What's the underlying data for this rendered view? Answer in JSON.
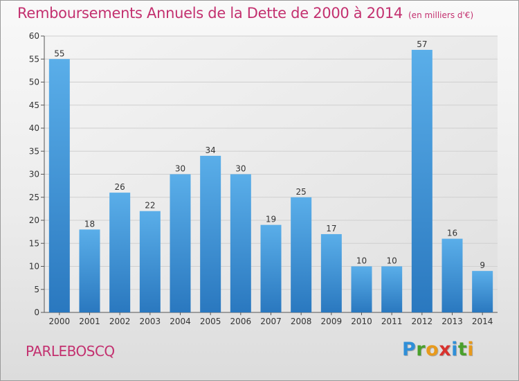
{
  "header": {
    "title": "Remboursements Annuels de la Dette de 2000 à 2014",
    "unit": "(en milliers d'€)"
  },
  "footer": {
    "commune": "PARLEBOSCQ",
    "logo_letters": [
      {
        "char": "P",
        "color": "#2f8fd8"
      },
      {
        "char": "r",
        "color": "#4aa02c"
      },
      {
        "char": "o",
        "color": "#e89a1c"
      },
      {
        "char": "x",
        "color": "#d8322e"
      },
      {
        "char": "i",
        "color": "#2f8fd8"
      },
      {
        "char": "t",
        "color": "#4aa02c"
      },
      {
        "char": "i",
        "color": "#e89a1c"
      }
    ]
  },
  "chart_data": {
    "type": "bar",
    "categories": [
      "2000",
      "2001",
      "2002",
      "2003",
      "2004",
      "2005",
      "2006",
      "2007",
      "2008",
      "2009",
      "2010",
      "2011",
      "2012",
      "2013",
      "2014"
    ],
    "values": [
      55,
      18,
      26,
      22,
      30,
      34,
      30,
      19,
      25,
      17,
      10,
      10,
      57,
      16,
      9
    ],
    "ylim": [
      0,
      60
    ],
    "yticks": [
      0,
      5,
      10,
      15,
      20,
      25,
      30,
      35,
      40,
      45,
      50,
      55,
      60
    ],
    "grid": true,
    "bar_color": "#3f94d6"
  }
}
